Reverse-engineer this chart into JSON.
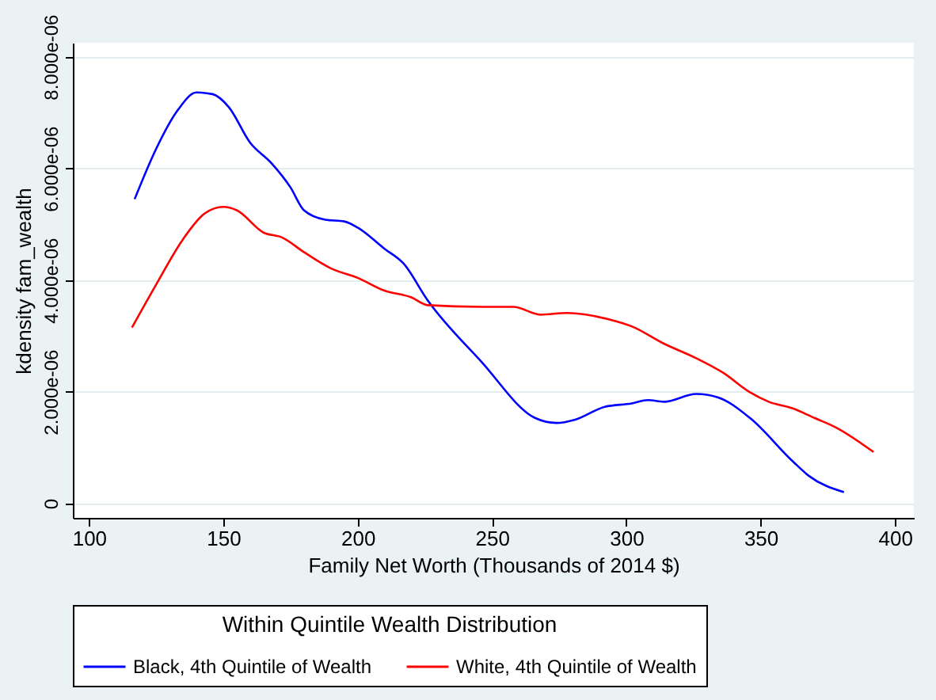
{
  "chart_data": {
    "type": "line",
    "xlabel": "Family Net Worth (Thousands of 2014 $)",
    "ylabel": "kdensity fam_wealth",
    "legend_title": "Within Quintile Wealth Distribution",
    "legend": "bottom",
    "grid": "y",
    "marker": "none",
    "line_style": "solid",
    "xlim": [
      94,
      407
    ],
    "xticks": [
      100,
      150,
      200,
      250,
      300,
      350,
      400
    ],
    "ylim": [
      -2.6e-07,
      8.25e-06
    ],
    "yticks": [
      0,
      {
        "value": 2e-06,
        "label": "2.000e-06"
      },
      {
        "value": 4e-06,
        "label": "4.000e-06"
      },
      {
        "value": 6e-06,
        "label": "6.000e-06"
      },
      {
        "value": 8e-06,
        "label": "8.000e-06"
      }
    ],
    "series": [
      {
        "name": "Black, 4th Quintile of Wealth",
        "color": "#0000ff",
        "x": [
          117,
          125,
          133,
          140,
          146,
          152,
          160,
          168,
          175,
          180,
          188,
          195,
          200,
          210,
          217,
          226,
          246,
          266,
          274,
          281,
          292,
          302,
          308,
          314,
          326,
          334,
          346,
          362,
          368,
          381
        ],
        "values": [
          5.45e-06,
          6.35e-06,
          7.04e-06,
          7.36e-06,
          7.33e-06,
          7.1e-06,
          6.46e-06,
          6.09e-06,
          5.66e-06,
          5.25e-06,
          5.08e-06,
          5.05e-06,
          4.94e-06,
          4.56e-06,
          4.3e-06,
          3.64e-06,
          2.54e-06,
          1.53e-06,
          1.44e-06,
          1.5e-06,
          1.73e-06,
          1.79e-06,
          1.85e-06,
          1.82e-06,
          1.96e-06,
          1.9e-06,
          1.53e-06,
          7.5e-07,
          4.9e-07,
          2e-07
        ]
      },
      {
        "name": "White, 4th Quintile of Wealth",
        "color": "#ff0000",
        "x": [
          116,
          125,
          135,
          143,
          150,
          155,
          165,
          172,
          180,
          190,
          200,
          210,
          220,
          226,
          246,
          258,
          268,
          278,
          294,
          302,
          314,
          326,
          336,
          346,
          353,
          362,
          370,
          378,
          392
        ],
        "values": [
          3.15e-06,
          3.92e-06,
          4.73e-06,
          5.19e-06,
          5.31e-06,
          5.25e-06,
          4.85e-06,
          4.76e-06,
          4.5e-06,
          4.21e-06,
          4.04e-06,
          3.81e-06,
          3.69e-06,
          3.55e-06,
          3.52e-06,
          3.52e-06,
          3.38e-06,
          3.41e-06,
          3.29e-06,
          3.17e-06,
          2.86e-06,
          2.6e-06,
          2.34e-06,
          1.99e-06,
          1.82e-06,
          1.7e-06,
          1.53e-06,
          1.36e-06,
          9.2e-07
        ]
      }
    ]
  }
}
